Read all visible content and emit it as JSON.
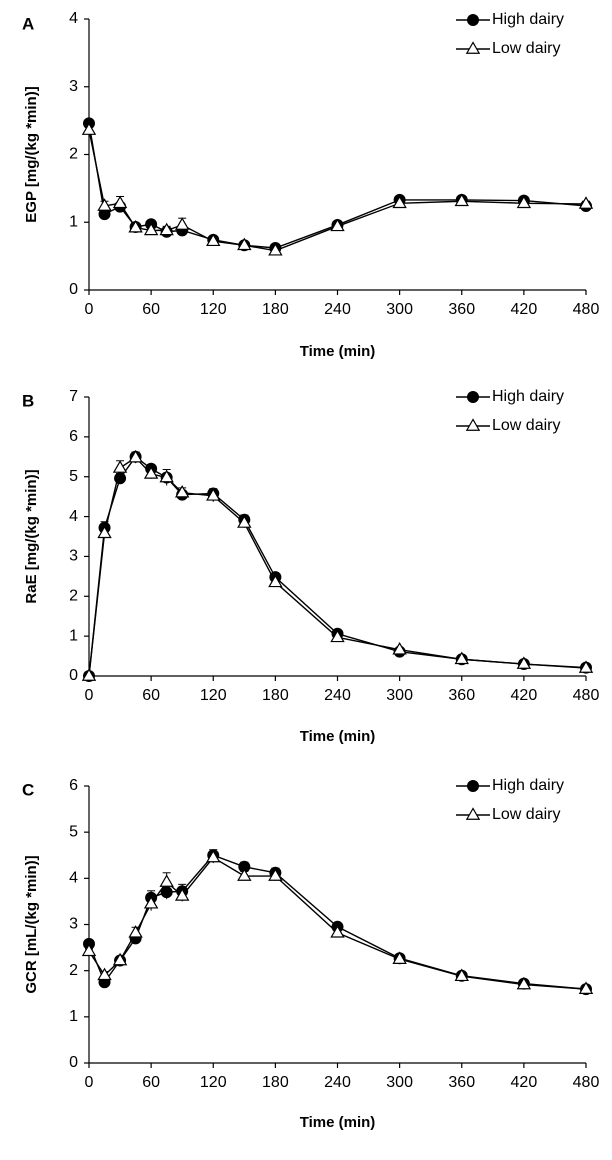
{
  "chart_data": [
    {
      "type": "line",
      "panel": "A",
      "xlabel": "Time (min)",
      "ylabel": "EGP [mg/(kg *min)]",
      "xlim": [
        0,
        480
      ],
      "ylim": [
        0,
        4
      ],
      "xticks": [
        0,
        60,
        120,
        180,
        240,
        300,
        360,
        420,
        480
      ],
      "yticks": [
        0,
        1,
        2,
        3,
        4
      ],
      "grid": false,
      "legend_position": "top-right",
      "x": [
        0,
        15,
        30,
        45,
        60,
        75,
        90,
        120,
        150,
        180,
        240,
        300,
        360,
        420,
        480
      ],
      "series": [
        {
          "name": "High dairy",
          "marker": "filled-circle",
          "values": [
            2.46,
            1.12,
            1.23,
            0.93,
            0.97,
            0.86,
            0.88,
            0.74,
            0.66,
            0.62,
            0.96,
            1.33,
            1.33,
            1.32,
            1.24
          ],
          "errors": [
            0.04,
            0.06,
            0.06,
            0.05,
            0.05,
            0.05,
            0.05,
            0.04,
            0.04,
            0.03,
            0.04,
            0.04,
            0.04,
            0.04,
            0.04
          ]
        },
        {
          "name": "Low dairy",
          "marker": "open-triangle",
          "values": [
            2.36,
            1.24,
            1.28,
            0.92,
            0.88,
            0.88,
            0.96,
            0.72,
            0.66,
            0.58,
            0.94,
            1.28,
            1.31,
            1.28,
            1.27
          ],
          "errors": [
            0.05,
            0.07,
            0.1,
            0.05,
            0.06,
            0.06,
            0.1,
            0.04,
            0.04,
            0.03,
            0.04,
            0.04,
            0.04,
            0.04,
            0.04
          ]
        }
      ]
    },
    {
      "type": "line",
      "panel": "B",
      "xlabel": "Time (min)",
      "ylabel": "RaE [mg/(kg *min)]",
      "xlim": [
        0,
        480
      ],
      "ylim": [
        0,
        7
      ],
      "xticks": [
        0,
        60,
        120,
        180,
        240,
        300,
        360,
        420,
        480
      ],
      "yticks": [
        0,
        1,
        2,
        3,
        4,
        5,
        6,
        7
      ],
      "grid": false,
      "legend_position": "top-right",
      "x": [
        0,
        15,
        30,
        45,
        60,
        75,
        90,
        120,
        150,
        180,
        240,
        300,
        360,
        420,
        480
      ],
      "series": [
        {
          "name": "High dairy",
          "marker": "filled-circle",
          "values": [
            0,
            3.72,
            4.96,
            5.5,
            5.2,
            4.98,
            4.55,
            4.58,
            3.92,
            2.48,
            1.06,
            0.61,
            0.42,
            0.3,
            0.21
          ],
          "errors": [
            0,
            0.15,
            0.12,
            0.1,
            0.1,
            0.1,
            0.08,
            0.12,
            0.12,
            0.08,
            0.04,
            0.03,
            0.03,
            0.02,
            0.02
          ]
        },
        {
          "name": "Low dairy",
          "marker": "open-triangle",
          "values": [
            0,
            3.58,
            5.22,
            5.48,
            5.07,
            4.98,
            4.6,
            4.52,
            3.84,
            2.35,
            0.97,
            0.66,
            0.42,
            0.3,
            0.2
          ],
          "errors": [
            0,
            0.12,
            0.18,
            0.14,
            0.12,
            0.2,
            0.12,
            0.15,
            0.12,
            0.08,
            0.04,
            0.03,
            0.03,
            0.02,
            0.02
          ]
        }
      ]
    },
    {
      "type": "line",
      "panel": "C",
      "xlabel": "Time (min)",
      "ylabel": "GCR [mL/(kg *min)]",
      "xlim": [
        0,
        480
      ],
      "ylim": [
        0,
        6
      ],
      "xticks": [
        0,
        60,
        120,
        180,
        240,
        300,
        360,
        420,
        480
      ],
      "yticks": [
        0,
        1,
        2,
        3,
        4,
        5,
        6
      ],
      "grid": false,
      "legend_position": "top-right",
      "x": [
        0,
        15,
        30,
        45,
        60,
        75,
        90,
        120,
        150,
        180,
        240,
        300,
        360,
        420,
        480
      ],
      "series": [
        {
          "name": "High dairy",
          "marker": "filled-circle",
          "values": [
            2.58,
            1.75,
            2.22,
            2.7,
            3.58,
            3.7,
            3.72,
            4.5,
            4.25,
            4.12,
            2.95,
            2.27,
            1.89,
            1.72,
            1.6
          ],
          "errors": [
            0.05,
            0.06,
            0.08,
            0.1,
            0.15,
            0.15,
            0.15,
            0.12,
            0.1,
            0.1,
            0.06,
            0.05,
            0.04,
            0.04,
            0.03
          ]
        },
        {
          "name": "Low dairy",
          "marker": "open-triangle",
          "values": [
            2.42,
            1.9,
            2.22,
            2.82,
            3.45,
            3.92,
            3.62,
            4.45,
            4.05,
            4.05,
            2.82,
            2.25,
            1.88,
            1.7,
            1.6
          ],
          "errors": [
            0.05,
            0.08,
            0.08,
            0.12,
            0.15,
            0.2,
            0.12,
            0.12,
            0.1,
            0.1,
            0.06,
            0.05,
            0.04,
            0.04,
            0.03
          ]
        }
      ]
    }
  ]
}
